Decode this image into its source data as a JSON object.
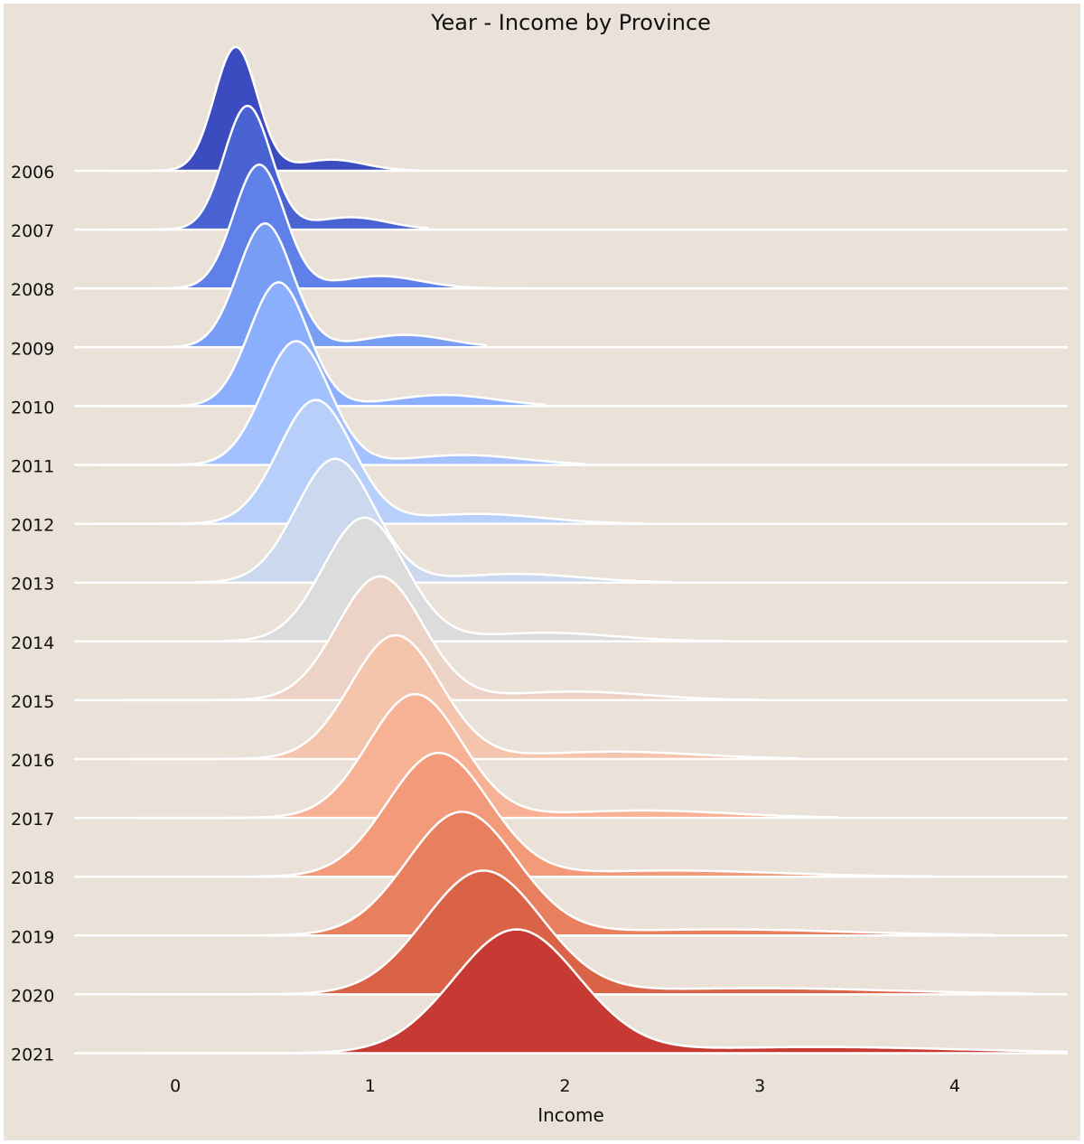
{
  "chart_data": {
    "type": "ridgeline",
    "title": "Year - Income by Province",
    "xlabel": "Income",
    "xlim": [
      -0.52,
      4.58
    ],
    "xticks": [
      0,
      1,
      2,
      3,
      4
    ],
    "xtick_labels": [
      "0",
      "1",
      "2",
      "3",
      "4"
    ],
    "grid": false,
    "series": [
      {
        "name": "2006",
        "color": "#3b4cc0",
        "peak": 0.31,
        "sigma": 0.11,
        "tail": 0.09,
        "tail_center": 0.8,
        "tail_sigma": 0.17,
        "end": 1.27
      },
      {
        "name": "2007",
        "color": "#4a63d3",
        "peak": 0.37,
        "sigma": 0.12,
        "tail": 0.1,
        "tail_center": 0.9,
        "tail_sigma": 0.19,
        "end": 1.3
      },
      {
        "name": "2008",
        "color": "#5f80e8",
        "peak": 0.43,
        "sigma": 0.13,
        "tail": 0.1,
        "tail_center": 1.05,
        "tail_sigma": 0.21,
        "end": 1.8
      },
      {
        "name": "2009",
        "color": "#779df5",
        "peak": 0.46,
        "sigma": 0.14,
        "tail": 0.1,
        "tail_center": 1.18,
        "tail_sigma": 0.22,
        "end": 1.6
      },
      {
        "name": "2010",
        "color": "#8caffd",
        "peak": 0.53,
        "sigma": 0.15,
        "tail": 0.09,
        "tail_center": 1.38,
        "tail_sigma": 0.26,
        "end": 1.9
      },
      {
        "name": "2011",
        "color": "#a2c1fe",
        "peak": 0.62,
        "sigma": 0.17,
        "tail": 0.08,
        "tail_center": 1.48,
        "tail_sigma": 0.3,
        "end": 2.1
      },
      {
        "name": "2012",
        "color": "#b7cff9",
        "peak": 0.72,
        "sigma": 0.19,
        "tail": 0.08,
        "tail_center": 1.55,
        "tail_sigma": 0.33,
        "end": 2.4
      },
      {
        "name": "2013",
        "color": "#cbd8ee",
        "peak": 0.82,
        "sigma": 0.2,
        "tail": 0.07,
        "tail_center": 1.75,
        "tail_sigma": 0.33,
        "end": 2.55
      },
      {
        "name": "2014",
        "color": "#dddcdc",
        "peak": 0.97,
        "sigma": 0.21,
        "tail": 0.07,
        "tail_center": 1.9,
        "tail_sigma": 0.35,
        "end": 2.9
      },
      {
        "name": "2015",
        "color": "#ecd3c5",
        "peak": 1.05,
        "sigma": 0.22,
        "tail": 0.07,
        "tail_center": 2.05,
        "tail_sigma": 0.37,
        "end": 3.0
      },
      {
        "name": "2016",
        "color": "#f5c4ac",
        "peak": 1.13,
        "sigma": 0.23,
        "tail": 0.06,
        "tail_center": 2.25,
        "tail_sigma": 0.43,
        "end": 3.2
      },
      {
        "name": "2017",
        "color": "#f7b194",
        "peak": 1.23,
        "sigma": 0.24,
        "tail": 0.06,
        "tail_center": 2.4,
        "tail_sigma": 0.45,
        "end": 3.4
      },
      {
        "name": "2018",
        "color": "#f39a7b",
        "peak": 1.35,
        "sigma": 0.26,
        "tail": 0.05,
        "tail_center": 2.55,
        "tail_sigma": 0.55,
        "end": 3.9
      },
      {
        "name": "2019",
        "color": "#e8805f",
        "peak": 1.47,
        "sigma": 0.28,
        "tail": 0.05,
        "tail_center": 2.8,
        "tail_sigma": 0.65,
        "end": 4.2
      },
      {
        "name": "2020",
        "color": "#da6347",
        "peak": 1.58,
        "sigma": 0.3,
        "tail": 0.05,
        "tail_center": 3.0,
        "tail_sigma": 0.7,
        "end": 4.4
      },
      {
        "name": "2021",
        "color": "#c63a33",
        "peak": 1.75,
        "sigma": 0.32,
        "tail": 0.05,
        "tail_center": 3.3,
        "tail_sigma": 0.75,
        "end": 4.58
      }
    ]
  }
}
